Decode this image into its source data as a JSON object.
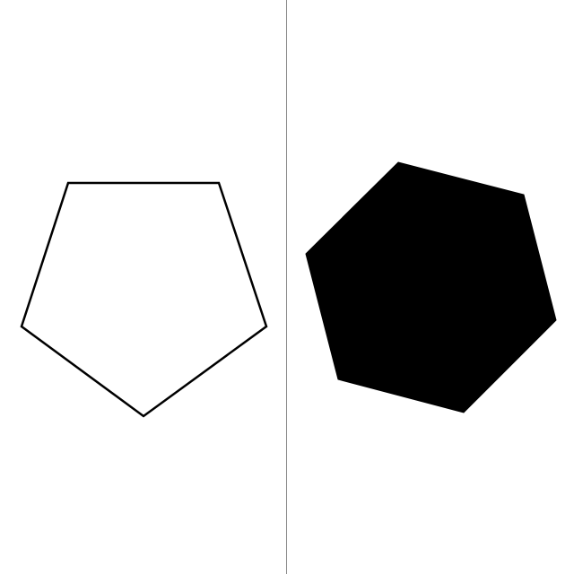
{
  "figure": {
    "background_color": "#ffffff",
    "divider_color": "#8a8a8a",
    "panels": [
      {
        "shape": "pentagon",
        "sides": 5,
        "style": "outline",
        "stroke_color": "#000000",
        "fill_color": "#ffffff"
      },
      {
        "shape": "hexagon",
        "sides": 6,
        "style": "filled",
        "stroke_color": "#000000",
        "fill_color": "#000000"
      }
    ]
  }
}
